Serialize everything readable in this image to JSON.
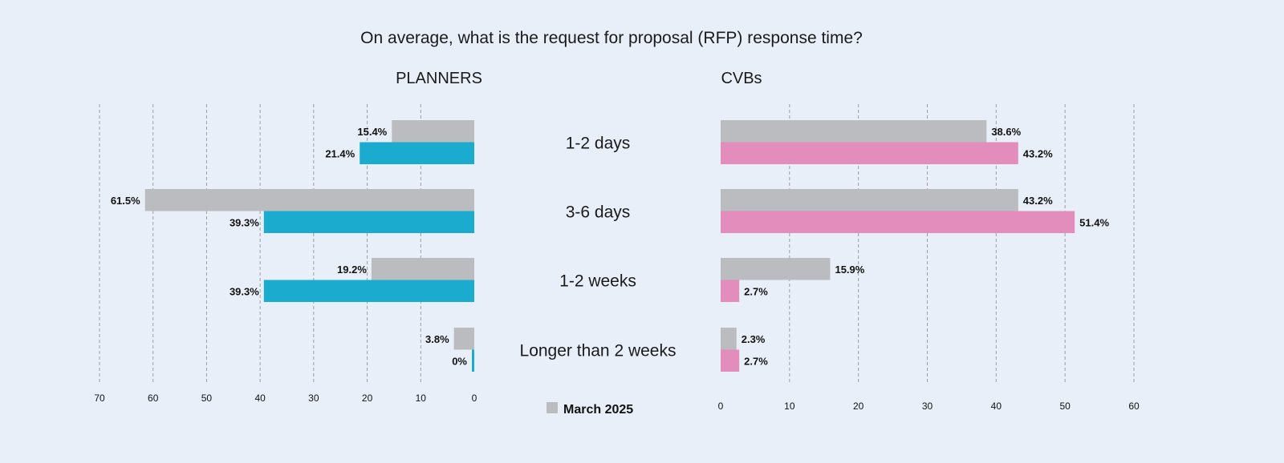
{
  "chart_data": [
    {
      "type": "bar",
      "orientation": "horizontal-reversed",
      "title": "PLANNERS",
      "categories": [
        "1-2 days",
        "3-6 days",
        "1-2 weeks",
        "Longer than 2 weeks"
      ],
      "series": [
        {
          "name": "March 2025",
          "color": "#bbbcbf",
          "values": [
            15.4,
            61.5,
            19.2,
            3.8
          ],
          "labels": [
            "15.4%",
            "61.5%",
            "19.2%",
            "3.8%"
          ]
        },
        {
          "name": "",
          "color": "#1aabcf",
          "values": [
            21.4,
            39.3,
            39.3,
            0
          ],
          "labels": [
            "21.4%",
            "39.3%",
            "39.3%",
            "0%"
          ]
        }
      ],
      "xlim": [
        0,
        70
      ],
      "ticks": [
        "0",
        "10",
        "20",
        "30",
        "40",
        "50",
        "60",
        "70"
      ],
      "grid": true
    },
    {
      "type": "bar",
      "orientation": "horizontal",
      "title": "CVBs",
      "categories": [
        "1-2 days",
        "3-6 days",
        "1-2 weeks",
        "Longer than 2 weeks"
      ],
      "series": [
        {
          "name": "March 2025",
          "color": "#bbbcbf",
          "values": [
            38.6,
            43.2,
            15.9,
            2.3
          ],
          "labels": [
            "38.6%",
            "43.2%",
            "15.9%",
            "2.3%"
          ]
        },
        {
          "name": "",
          "color": "#e28dbb",
          "values": [
            43.2,
            51.4,
            2.7,
            2.7
          ],
          "labels": [
            "43.2%",
            "51.4%",
            "2.7%",
            "2.7%"
          ]
        }
      ],
      "xlim": [
        0,
        60
      ],
      "ticks": [
        "0",
        "10",
        "20",
        "30",
        "40",
        "50",
        "60"
      ],
      "grid": true
    }
  ],
  "title": "On average, what is the request for proposal (RFP) response time?",
  "legend": {
    "label": "March 2025",
    "color": "#bbbcbf",
    "placement": "bottom-center"
  }
}
